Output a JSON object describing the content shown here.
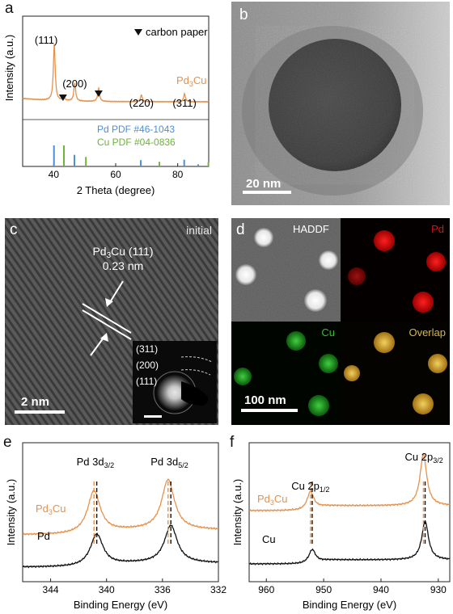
{
  "panel_labels": {
    "a": "a",
    "b": "b",
    "c": "c",
    "d": "d",
    "e": "e",
    "f": "f"
  },
  "colors": {
    "pd3cu": "#e8914a",
    "pd": "#111111",
    "cu": "#111111",
    "pd_pdf": "#4a90d9",
    "cu_pdf": "#6fb23a",
    "pd_map": "#e01010",
    "cu_map": "#30c030",
    "overlap": "#d8b840"
  },
  "chart_data": [
    {
      "id": "a",
      "type": "line",
      "xlabel": "2 Theta (degree)",
      "ylabel": "Intensity (a.u.)",
      "xlim": [
        30,
        90
      ],
      "xticks": [
        40,
        60,
        80
      ],
      "legend_marker_text": "carbon paper",
      "series": [
        {
          "name": "Pd3Cu",
          "name_main": "Pd",
          "name_sub": "3",
          "name_tail": "Cu",
          "peaks": [
            {
              "x": 40.2,
              "h": 1.0
            },
            {
              "x": 46.8,
              "h": 0.32
            },
            {
              "x": 68.3,
              "h": 0.12
            },
            {
              "x": 82.2,
              "h": 0.14
            },
            {
              "x": 54.5,
              "h": 0.24
            },
            {
              "x": 43.2,
              "h": 0.08
            }
          ]
        }
      ],
      "peak_labels": [
        {
          "text": "(111)",
          "x": 40.2
        },
        {
          "text": "(200)",
          "x": 46.8
        },
        {
          "text": "(220)",
          "x": 68.3
        },
        {
          "text": "(311)",
          "x": 82.2
        }
      ],
      "triangles": [
        43.0,
        54.5
      ],
      "reference": [
        {
          "label": "Pd PDF #46-1043",
          "sticks": [
            40.1,
            46.7,
            68.1,
            82.1,
            86.6
          ],
          "heights": [
            1.0,
            0.55,
            0.3,
            0.32,
            0.1
          ]
        },
        {
          "label": "Cu PDF #04-0836",
          "sticks": [
            43.3,
            50.4,
            74.1,
            89.9
          ],
          "heights": [
            1.0,
            0.45,
            0.22,
            0.2
          ]
        }
      ]
    },
    {
      "id": "e",
      "type": "line",
      "xlabel": "Binding Energy (eV)",
      "ylabel": "Intensity (a.u.)",
      "xlim": [
        346,
        332
      ],
      "xticks": [
        344,
        340,
        336,
        332
      ],
      "peak_labels": [
        {
          "main": "Pd 3d",
          "sub": "3/2",
          "x": 340.8
        },
        {
          "main": "Pd 3d",
          "sub": "5/2",
          "x": 335.5
        }
      ],
      "series": [
        {
          "name": "Pd3Cu",
          "name_main": "Pd",
          "name_sub": "3",
          "name_tail": "Cu",
          "peaks": [
            340.9,
            335.6
          ]
        },
        {
          "name": "Pd",
          "name_main": "Pd",
          "name_sub": "",
          "name_tail": "",
          "peaks": [
            340.7,
            335.4
          ]
        }
      ]
    },
    {
      "id": "f",
      "type": "line",
      "xlabel": "Binding Energy (eV)",
      "ylabel": "Intensity (a.u.)",
      "xlim": [
        963,
        928
      ],
      "xticks": [
        960,
        950,
        940,
        930
      ],
      "peak_labels": [
        {
          "main": "Cu 2p",
          "sub": "1/2",
          "x": 952.3
        },
        {
          "main": "Cu 2p",
          "sub": "3/2",
          "x": 932.5
        }
      ],
      "series": [
        {
          "name": "Pd3Cu",
          "name_main": "Pd",
          "name_sub": "3",
          "name_tail": "Cu",
          "peaks": [
            952.3,
            932.6
          ]
        },
        {
          "name": "Cu",
          "name_main": "Cu",
          "name_sub": "",
          "name_tail": "",
          "peaks": [
            952.0,
            932.3
          ]
        }
      ]
    }
  ],
  "panel_b": {
    "scalebar": "20 nm"
  },
  "panel_c": {
    "corner": "initial",
    "lattice_main": "Pd",
    "lattice_sub": "3",
    "lattice_tail": "Cu (111)",
    "spacing": "0.23 nm",
    "saed_labels": [
      "(311)",
      "(200)",
      "(111)"
    ],
    "scalebar": "2 nm"
  },
  "panel_d": {
    "tiles": [
      {
        "label": "HADDF",
        "kind": "haadf"
      },
      {
        "label": "Pd",
        "kind": "pd"
      },
      {
        "label": "Cu",
        "kind": "cu"
      },
      {
        "label": "Overlap",
        "kind": "overlap"
      }
    ],
    "scalebar": "100 nm"
  }
}
